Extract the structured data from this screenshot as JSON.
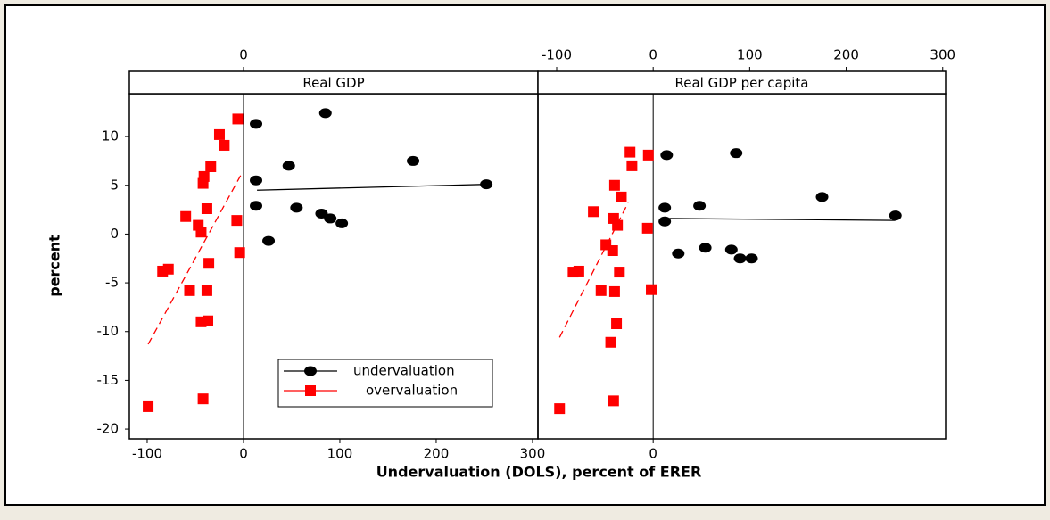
{
  "chart_data": [
    {
      "type": "scatter",
      "title": "Real GDP",
      "xlabel": "Undervaluation (DOLS), percent of ERER",
      "ylabel": "percent",
      "xlim": [
        -118.5,
        305.6
      ],
      "ylim": [
        -21,
        14.4
      ],
      "xticks": [
        -100,
        0,
        100,
        200,
        300
      ],
      "xticks_top": [
        0
      ],
      "yticks": [
        -20,
        -15,
        -10,
        -5,
        0,
        5,
        10
      ],
      "zero_line": true,
      "legend": "bottom",
      "series": [
        {
          "name": "undervaluation",
          "color": "#000000",
          "marker": "circle",
          "dashed_fit": false,
          "x": [
            13,
            85,
            13,
            47,
            176,
            252,
            13,
            55,
            81,
            90,
            102,
            26
          ],
          "values": [
            11.3,
            12.4,
            5.5,
            7.0,
            7.5,
            5.1,
            2.9,
            2.7,
            2.1,
            1.6,
            1.1,
            -0.7
          ],
          "fit": {
            "x": [
              14,
              252
            ],
            "values": [
              4.5,
              5.1
            ]
          }
        },
        {
          "name": "overvaluation",
          "color": "#ff0000",
          "marker": "square",
          "dashed_fit": true,
          "x": [
            -6,
            -25,
            -20,
            -34,
            -41,
            -42,
            -38,
            -60,
            -47,
            -44,
            -7,
            -4,
            -36,
            -78,
            -84,
            -56,
            -38,
            -37,
            -44,
            -42,
            -99
          ],
          "values": [
            11.8,
            10.2,
            9.1,
            6.9,
            5.9,
            5.2,
            2.6,
            1.8,
            0.9,
            0.2,
            1.4,
            -1.9,
            -3.0,
            -3.6,
            -3.8,
            -5.8,
            -5.8,
            -8.9,
            -9.0,
            -16.9,
            -17.7
          ],
          "fit": {
            "x": [
              -99,
              -3
            ],
            "values": [
              -11.3,
              6.0
            ]
          }
        }
      ]
    },
    {
      "type": "scatter",
      "title": "Real GDP per capita",
      "xlim": [
        -119.4,
        303
      ],
      "ylim": [
        -21,
        14.4
      ],
      "xticks": [
        0
      ],
      "xticks_top": [
        -100,
        0,
        100,
        200,
        300
      ],
      "zero_line": true,
      "series": [
        {
          "name": "undervaluation",
          "color": "#000000",
          "marker": "circle",
          "dashed_fit": false,
          "x": [
            14,
            86,
            12,
            48,
            175,
            251,
            12,
            26,
            54,
            81,
            90,
            102
          ],
          "values": [
            8.1,
            8.3,
            2.7,
            2.9,
            3.8,
            1.9,
            1.3,
            -2.0,
            -1.4,
            -1.6,
            -2.5,
            -2.5
          ],
          "fit": {
            "x": [
              12,
              251
            ],
            "values": [
              1.6,
              1.4
            ]
          }
        },
        {
          "name": "overvaluation",
          "color": "#ff0000",
          "marker": "square",
          "dashed_fit": true,
          "x": [
            -24,
            -5,
            -22,
            -40,
            -33,
            -62,
            -41,
            -37,
            -49,
            -42,
            -6,
            -35,
            -77,
            -83,
            -54,
            -40,
            -2,
            -38,
            -44,
            -41,
            -97
          ],
          "values": [
            8.4,
            8.1,
            7.0,
            5.0,
            3.8,
            2.3,
            1.6,
            0.9,
            -1.1,
            -1.7,
            0.6,
            -3.9,
            -3.8,
            -3.9,
            -5.8,
            -5.9,
            -5.7,
            -9.2,
            -11.1,
            -17.1,
            -17.9
          ],
          "fit": {
            "x": [
              -97,
              -26
            ],
            "values": [
              -10.6,
              3.2
            ]
          }
        }
      ]
    }
  ]
}
